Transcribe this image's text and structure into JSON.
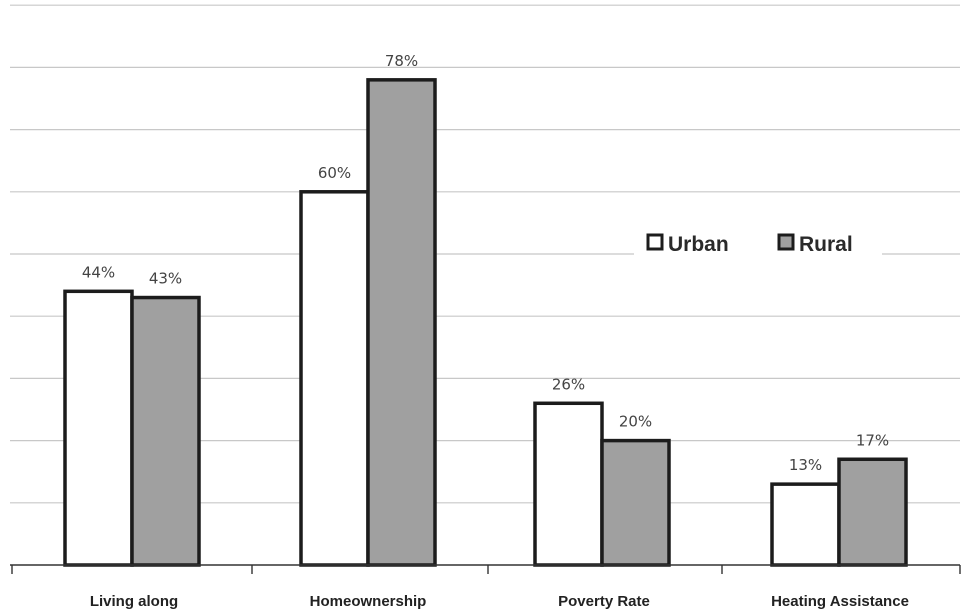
{
  "chart_data": {
    "type": "bar",
    "categories": [
      "Living along",
      "Homeownership",
      "Poverty Rate",
      "Heating Assistance"
    ],
    "series": [
      {
        "name": "Urban",
        "values": [
          44,
          60,
          26,
          13
        ],
        "labels": [
          "44%",
          "60%",
          "26%",
          "13%"
        ],
        "color": "#ffffff"
      },
      {
        "name": "Rural",
        "values": [
          43,
          78,
          20,
          17
        ],
        "labels": [
          "43%",
          "78%",
          "20%",
          "17%"
        ],
        "color": "#a0a0a0"
      }
    ],
    "ylim": [
      0,
      90
    ],
    "grid": true,
    "legend": "right, upper middle"
  }
}
